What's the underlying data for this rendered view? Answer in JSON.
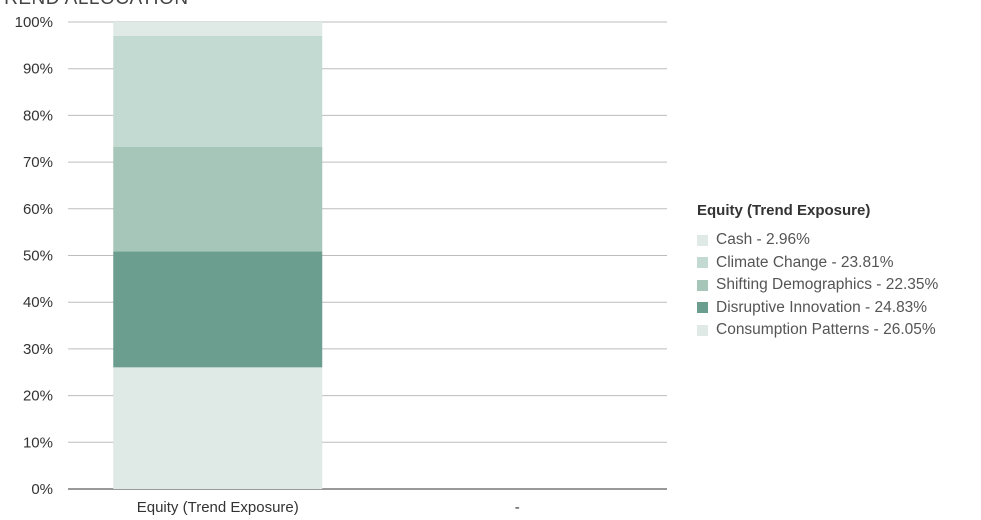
{
  "chart_data": {
    "type": "bar",
    "stacked": true,
    "title": "TREND ALLOCATION",
    "categories": [
      "Equity (Trend Exposure)",
      "-"
    ],
    "series": [
      {
        "name": "Consumption Patterns",
        "values": [
          26.05,
          0
        ],
        "color": "#dfe9e5",
        "legend_label": "Consumption Patterns - 26.05%"
      },
      {
        "name": "Disruptive Innovation",
        "values": [
          24.83,
          0
        ],
        "color": "#6c9e90",
        "legend_label": "Disruptive Innovation - 24.83%"
      },
      {
        "name": "Shifting Demographics",
        "values": [
          22.35,
          0
        ],
        "color": "#a6c6ba",
        "legend_label": "Shifting Demographics - 22.35%"
      },
      {
        "name": "Climate Change",
        "values": [
          23.81,
          0
        ],
        "color": "#c3dad2",
        "legend_label": "Climate Change - 23.81%"
      },
      {
        "name": "Cash",
        "values": [
          2.96,
          0
        ],
        "color": "#dfe9e5",
        "legend_label": "Cash - 2.96%"
      }
    ],
    "ylim": [
      0,
      100
    ],
    "yticks": [
      "0%",
      "10%",
      "20%",
      "30%",
      "40%",
      "50%",
      "60%",
      "70%",
      "80%",
      "90%",
      "100%"
    ],
    "grid": true,
    "legend": {
      "title": "Equity (Trend Exposure)",
      "placement": "right",
      "order": [
        "Cash",
        "Climate Change",
        "Shifting Demographics",
        "Disruptive Innovation",
        "Consumption Patterns"
      ]
    }
  }
}
